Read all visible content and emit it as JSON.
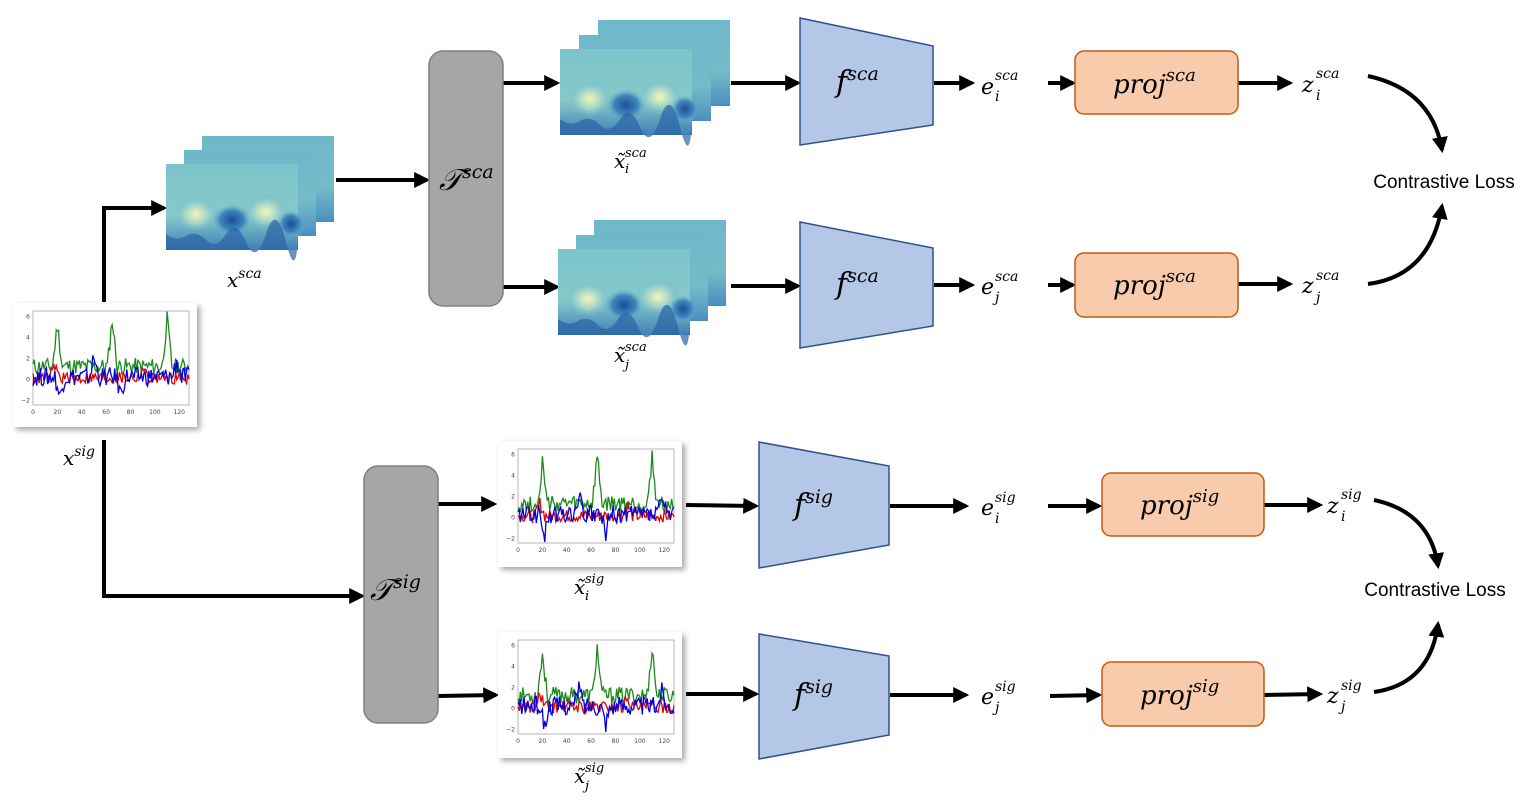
{
  "colors": {
    "transform_box": "#a6a6a6",
    "encoder_fill": "#b4c7e7",
    "encoder_stroke": "#2f528f",
    "proj_fill": "#f8cbad",
    "proj_stroke": "#c55a11",
    "series_green": "#1a8a1a",
    "series_red": "#e00000",
    "series_blue": "#0000e0",
    "scalogram_light": "#f1f3b5",
    "scalogram_mid": "#7ec2c9",
    "scalogram_dark": "#1c5c9f"
  },
  "top": {
    "input_label": "x",
    "input_sup": "sca",
    "transform_label": "𝒯",
    "transform_sup": "sca",
    "view_i_label": "x̃",
    "view_i_sub": "i",
    "view_i_sup": "sca",
    "view_j_label": "x̃",
    "view_j_sub": "j",
    "view_j_sup": "sca",
    "encoder_label": "f",
    "encoder_sup": "sca",
    "emb_label": "e",
    "emb_i_sub": "i",
    "emb_j_sub": "j",
    "emb_sup": "sca",
    "proj_label": "proj",
    "proj_sup": "sca",
    "out_label": "z",
    "out_i_sub": "i",
    "out_j_sub": "j",
    "out_sup": "sca",
    "loss_label": "Contrastive Loss"
  },
  "bottom": {
    "input_label": "x",
    "input_sup": "sig",
    "transform_label": "𝒯",
    "transform_sup": "sig",
    "view_i_label": "x̃",
    "view_i_sub": "i",
    "view_i_sup": "sig",
    "view_j_label": "x̃",
    "view_j_sub": "j",
    "view_j_sup": "sig",
    "encoder_label": "f",
    "encoder_sup": "sig",
    "emb_label": "e",
    "emb_i_sub": "i",
    "emb_j_sub": "j",
    "emb_sup": "sig",
    "proj_label": "proj",
    "proj_sup": "sig",
    "out_label": "z",
    "out_i_sub": "i",
    "out_j_sub": "j",
    "out_sup": "sig",
    "loss_label": "Contrastive Loss"
  },
  "plot_ticks": {
    "y": [
      "6",
      "4",
      "2",
      "0",
      "−2"
    ],
    "x": [
      "0",
      "20",
      "40",
      "60",
      "80",
      "100",
      "120"
    ]
  }
}
